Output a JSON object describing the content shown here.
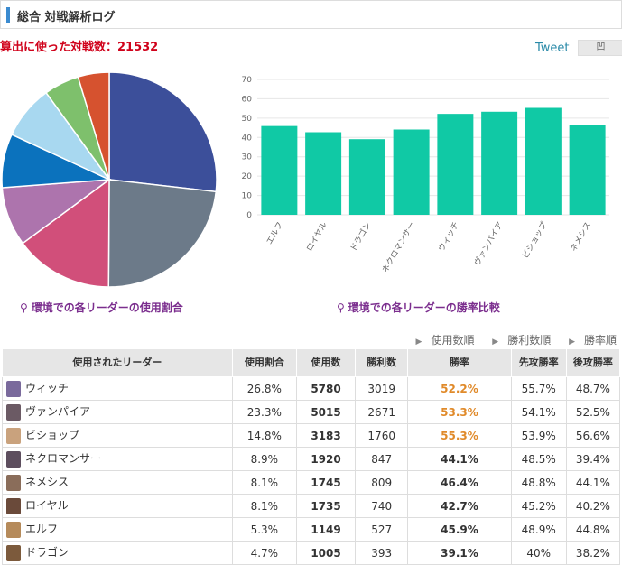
{
  "header": {
    "title": "総合 対戦解析ログ"
  },
  "total_label": "算出に使った対戦数：21532",
  "tweet_label": "Tweet",
  "share_label": "凹",
  "pie_caption": "環境での各リーダーの使用割合",
  "bar_caption": "環境での各リーダーの勝率比較",
  "sort": {
    "used": "使用数順",
    "wins": "勝利数順",
    "rate": "勝率順"
  },
  "table": {
    "headers": [
      "使用されたリーダー",
      "使用割合",
      "使用数",
      "勝利数",
      "勝率",
      "先攻勝率",
      "後攻勝率"
    ],
    "rows": [
      {
        "name": "ウィッチ",
        "share": "26.8%",
        "used": "5780",
        "wins": "3019",
        "rate": "52.2%",
        "first": "55.7%",
        "second": "48.7%",
        "highlight": true,
        "avatar": "#7a6a9c"
      },
      {
        "name": "ヴァンパイア",
        "share": "23.3%",
        "used": "5015",
        "wins": "2671",
        "rate": "53.3%",
        "first": "54.1%",
        "second": "52.5%",
        "highlight": true,
        "avatar": "#6b5a64"
      },
      {
        "name": "ビショップ",
        "share": "14.8%",
        "used": "3183",
        "wins": "1760",
        "rate": "55.3%",
        "first": "53.9%",
        "second": "56.6%",
        "highlight": true,
        "avatar": "#c9a27d"
      },
      {
        "name": "ネクロマンサー",
        "share": "8.9%",
        "used": "1920",
        "wins": "847",
        "rate": "44.1%",
        "first": "48.5%",
        "second": "39.4%",
        "highlight": false,
        "avatar": "#5d4e5e"
      },
      {
        "name": "ネメシス",
        "share": "8.1%",
        "used": "1745",
        "wins": "809",
        "rate": "46.4%",
        "first": "48.8%",
        "second": "44.1%",
        "highlight": false,
        "avatar": "#8a6d5a"
      },
      {
        "name": "ロイヤル",
        "share": "8.1%",
        "used": "1735",
        "wins": "740",
        "rate": "42.7%",
        "first": "45.2%",
        "second": "40.2%",
        "highlight": false,
        "avatar": "#6a4a3a"
      },
      {
        "name": "エルフ",
        "share": "5.3%",
        "used": "1149",
        "wins": "527",
        "rate": "45.9%",
        "first": "48.9%",
        "second": "44.8%",
        "highlight": false,
        "avatar": "#b58a5a"
      },
      {
        "name": "ドラゴン",
        "share": "4.7%",
        "used": "1005",
        "wins": "393",
        "rate": "39.1%",
        "first": "40%",
        "second": "38.2%",
        "highlight": false,
        "avatar": "#7c5a3c"
      }
    ]
  },
  "chart_data": [
    {
      "type": "pie",
      "categories": [
        "ウィッチ",
        "ヴァンパイア",
        "ビショップ",
        "ネクロマンサー",
        "ネメシス",
        "ロイヤル",
        "エルフ",
        "ドラゴン"
      ],
      "values": [
        26.8,
        23.3,
        14.8,
        8.9,
        8.1,
        8.1,
        5.3,
        4.7
      ],
      "colors": [
        "#3c4f9a",
        "#6c7a89",
        "#d14f7a",
        "#ad74ad",
        "#0b72bd",
        "#a8d8f0",
        "#7ec06c",
        "#d6522f"
      ]
    },
    {
      "type": "bar",
      "categories": [
        "エルフ",
        "ロイヤル",
        "ドラゴン",
        "ネクロマンサー",
        "ウィッチ",
        "ヴァンパイア",
        "ビショップ",
        "ネメシス"
      ],
      "values": [
        45.9,
        42.7,
        39.1,
        44.1,
        52.2,
        53.3,
        55.3,
        46.4
      ],
      "ylim": [
        0,
        70
      ],
      "yticks": [
        0,
        10,
        20,
        30,
        40,
        50,
        60,
        70
      ],
      "grid": true,
      "color": "#10c9a5"
    }
  ]
}
